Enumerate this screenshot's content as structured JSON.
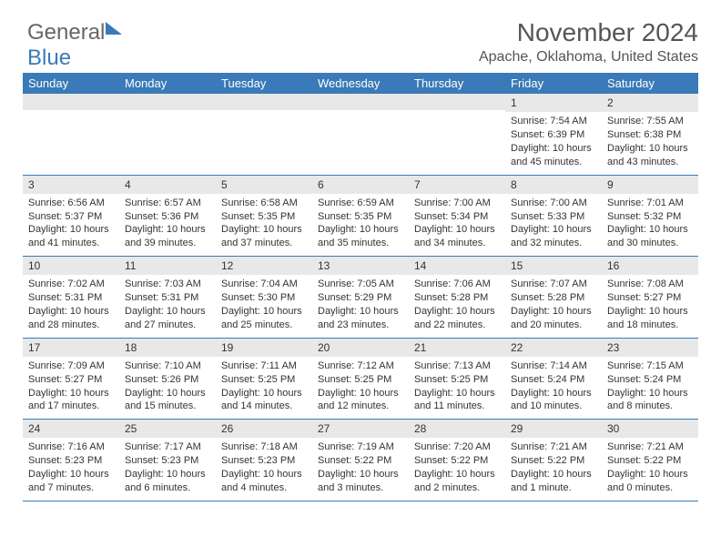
{
  "logo": {
    "part1": "General",
    "part2": "Blue"
  },
  "title": "November 2024",
  "location": "Apache, Oklahoma, United States",
  "colors": {
    "header_bg": "#3a7ab8",
    "header_text": "#ffffff",
    "daynum_bg": "#e8e8e8",
    "rule": "#3a7ab8"
  },
  "daynames": [
    "Sunday",
    "Monday",
    "Tuesday",
    "Wednesday",
    "Thursday",
    "Friday",
    "Saturday"
  ],
  "weeks": [
    [
      {
        "n": "",
        "sr": "",
        "ss": "",
        "dl": ""
      },
      {
        "n": "",
        "sr": "",
        "ss": "",
        "dl": ""
      },
      {
        "n": "",
        "sr": "",
        "ss": "",
        "dl": ""
      },
      {
        "n": "",
        "sr": "",
        "ss": "",
        "dl": ""
      },
      {
        "n": "",
        "sr": "",
        "ss": "",
        "dl": ""
      },
      {
        "n": "1",
        "sr": "Sunrise: 7:54 AM",
        "ss": "Sunset: 6:39 PM",
        "dl": "Daylight: 10 hours and 45 minutes."
      },
      {
        "n": "2",
        "sr": "Sunrise: 7:55 AM",
        "ss": "Sunset: 6:38 PM",
        "dl": "Daylight: 10 hours and 43 minutes."
      }
    ],
    [
      {
        "n": "3",
        "sr": "Sunrise: 6:56 AM",
        "ss": "Sunset: 5:37 PM",
        "dl": "Daylight: 10 hours and 41 minutes."
      },
      {
        "n": "4",
        "sr": "Sunrise: 6:57 AM",
        "ss": "Sunset: 5:36 PM",
        "dl": "Daylight: 10 hours and 39 minutes."
      },
      {
        "n": "5",
        "sr": "Sunrise: 6:58 AM",
        "ss": "Sunset: 5:35 PM",
        "dl": "Daylight: 10 hours and 37 minutes."
      },
      {
        "n": "6",
        "sr": "Sunrise: 6:59 AM",
        "ss": "Sunset: 5:35 PM",
        "dl": "Daylight: 10 hours and 35 minutes."
      },
      {
        "n": "7",
        "sr": "Sunrise: 7:00 AM",
        "ss": "Sunset: 5:34 PM",
        "dl": "Daylight: 10 hours and 34 minutes."
      },
      {
        "n": "8",
        "sr": "Sunrise: 7:00 AM",
        "ss": "Sunset: 5:33 PM",
        "dl": "Daylight: 10 hours and 32 minutes."
      },
      {
        "n": "9",
        "sr": "Sunrise: 7:01 AM",
        "ss": "Sunset: 5:32 PM",
        "dl": "Daylight: 10 hours and 30 minutes."
      }
    ],
    [
      {
        "n": "10",
        "sr": "Sunrise: 7:02 AM",
        "ss": "Sunset: 5:31 PM",
        "dl": "Daylight: 10 hours and 28 minutes."
      },
      {
        "n": "11",
        "sr": "Sunrise: 7:03 AM",
        "ss": "Sunset: 5:31 PM",
        "dl": "Daylight: 10 hours and 27 minutes."
      },
      {
        "n": "12",
        "sr": "Sunrise: 7:04 AM",
        "ss": "Sunset: 5:30 PM",
        "dl": "Daylight: 10 hours and 25 minutes."
      },
      {
        "n": "13",
        "sr": "Sunrise: 7:05 AM",
        "ss": "Sunset: 5:29 PM",
        "dl": "Daylight: 10 hours and 23 minutes."
      },
      {
        "n": "14",
        "sr": "Sunrise: 7:06 AM",
        "ss": "Sunset: 5:28 PM",
        "dl": "Daylight: 10 hours and 22 minutes."
      },
      {
        "n": "15",
        "sr": "Sunrise: 7:07 AM",
        "ss": "Sunset: 5:28 PM",
        "dl": "Daylight: 10 hours and 20 minutes."
      },
      {
        "n": "16",
        "sr": "Sunrise: 7:08 AM",
        "ss": "Sunset: 5:27 PM",
        "dl": "Daylight: 10 hours and 18 minutes."
      }
    ],
    [
      {
        "n": "17",
        "sr": "Sunrise: 7:09 AM",
        "ss": "Sunset: 5:27 PM",
        "dl": "Daylight: 10 hours and 17 minutes."
      },
      {
        "n": "18",
        "sr": "Sunrise: 7:10 AM",
        "ss": "Sunset: 5:26 PM",
        "dl": "Daylight: 10 hours and 15 minutes."
      },
      {
        "n": "19",
        "sr": "Sunrise: 7:11 AM",
        "ss": "Sunset: 5:25 PM",
        "dl": "Daylight: 10 hours and 14 minutes."
      },
      {
        "n": "20",
        "sr": "Sunrise: 7:12 AM",
        "ss": "Sunset: 5:25 PM",
        "dl": "Daylight: 10 hours and 12 minutes."
      },
      {
        "n": "21",
        "sr": "Sunrise: 7:13 AM",
        "ss": "Sunset: 5:25 PM",
        "dl": "Daylight: 10 hours and 11 minutes."
      },
      {
        "n": "22",
        "sr": "Sunrise: 7:14 AM",
        "ss": "Sunset: 5:24 PM",
        "dl": "Daylight: 10 hours and 10 minutes."
      },
      {
        "n": "23",
        "sr": "Sunrise: 7:15 AM",
        "ss": "Sunset: 5:24 PM",
        "dl": "Daylight: 10 hours and 8 minutes."
      }
    ],
    [
      {
        "n": "24",
        "sr": "Sunrise: 7:16 AM",
        "ss": "Sunset: 5:23 PM",
        "dl": "Daylight: 10 hours and 7 minutes."
      },
      {
        "n": "25",
        "sr": "Sunrise: 7:17 AM",
        "ss": "Sunset: 5:23 PM",
        "dl": "Daylight: 10 hours and 6 minutes."
      },
      {
        "n": "26",
        "sr": "Sunrise: 7:18 AM",
        "ss": "Sunset: 5:23 PM",
        "dl": "Daylight: 10 hours and 4 minutes."
      },
      {
        "n": "27",
        "sr": "Sunrise: 7:19 AM",
        "ss": "Sunset: 5:22 PM",
        "dl": "Daylight: 10 hours and 3 minutes."
      },
      {
        "n": "28",
        "sr": "Sunrise: 7:20 AM",
        "ss": "Sunset: 5:22 PM",
        "dl": "Daylight: 10 hours and 2 minutes."
      },
      {
        "n": "29",
        "sr": "Sunrise: 7:21 AM",
        "ss": "Sunset: 5:22 PM",
        "dl": "Daylight: 10 hours and 1 minute."
      },
      {
        "n": "30",
        "sr": "Sunrise: 7:21 AM",
        "ss": "Sunset: 5:22 PM",
        "dl": "Daylight: 10 hours and 0 minutes."
      }
    ]
  ]
}
